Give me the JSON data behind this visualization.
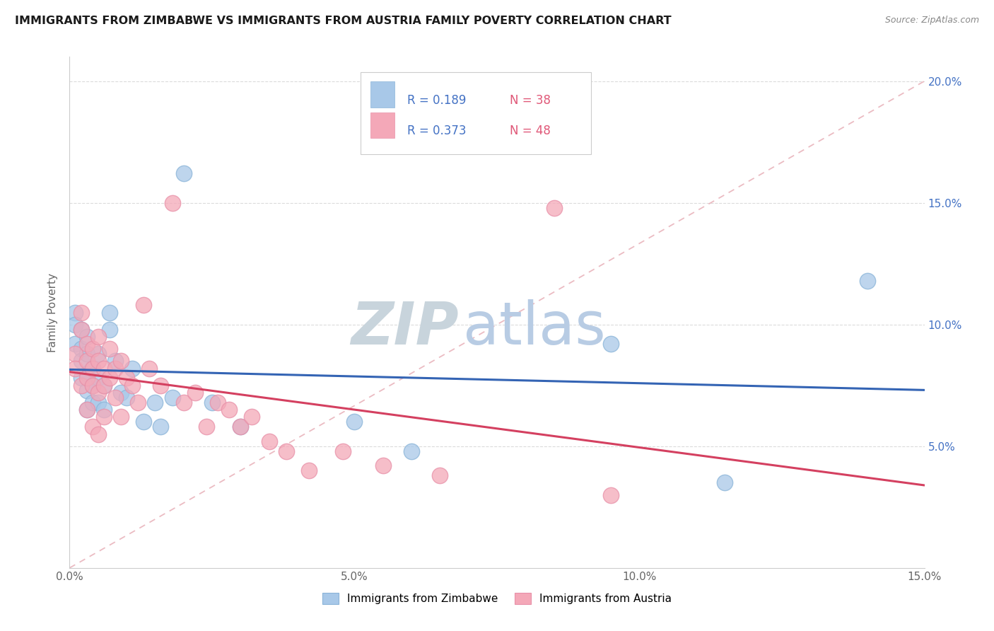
{
  "title": "IMMIGRANTS FROM ZIMBABWE VS IMMIGRANTS FROM AUSTRIA FAMILY POVERTY CORRELATION CHART",
  "source": "Source: ZipAtlas.com",
  "ylabel": "Family Poverty",
  "xlim": [
    0.0,
    0.15
  ],
  "ylim": [
    0.0,
    0.21
  ],
  "xtick_values": [
    0.0,
    0.025,
    0.05,
    0.075,
    0.1,
    0.125,
    0.15
  ],
  "xtick_labels": [
    "0.0%",
    "",
    "5.0%",
    "",
    "10.0%",
    "",
    "15.0%"
  ],
  "ytick_values": [
    0.05,
    0.1,
    0.15,
    0.2
  ],
  "ytick_labels": [
    "5.0%",
    "10.0%",
    "15.0%",
    "20.0%"
  ],
  "zimbabwe_color": "#a8c8e8",
  "austria_color": "#f4a8b8",
  "zimbabwe_edge_color": "#8ab4d8",
  "austria_edge_color": "#e890a8",
  "zimbabwe_line_color": "#3464b4",
  "austria_line_color": "#d44060",
  "diagonal_color": "#e8b0b8",
  "R_zimbabwe": 0.189,
  "N_zimbabwe": 38,
  "R_austria": 0.373,
  "N_austria": 48,
  "legend_R_color": "#4472c4",
  "legend_N_color": "#e05878",
  "background_color": "#ffffff",
  "grid_color": "#d8d8d8",
  "watermark_text": "ZIPatlas",
  "watermark_color": "#dce8f0",
  "zimbabwe_x": [
    0.001,
    0.001,
    0.001,
    0.002,
    0.002,
    0.002,
    0.002,
    0.003,
    0.003,
    0.003,
    0.003,
    0.003,
    0.004,
    0.004,
    0.004,
    0.005,
    0.005,
    0.005,
    0.006,
    0.006,
    0.007,
    0.007,
    0.008,
    0.009,
    0.01,
    0.011,
    0.013,
    0.015,
    0.016,
    0.018,
    0.02,
    0.025,
    0.03,
    0.05,
    0.06,
    0.095,
    0.115,
    0.14
  ],
  "zimbabwe_y": [
    0.105,
    0.1,
    0.092,
    0.098,
    0.09,
    0.085,
    0.078,
    0.095,
    0.088,
    0.08,
    0.073,
    0.065,
    0.082,
    0.075,
    0.068,
    0.088,
    0.078,
    0.068,
    0.075,
    0.065,
    0.105,
    0.098,
    0.085,
    0.072,
    0.07,
    0.082,
    0.06,
    0.068,
    0.058,
    0.07,
    0.162,
    0.068,
    0.058,
    0.06,
    0.048,
    0.092,
    0.035,
    0.118
  ],
  "austria_x": [
    0.001,
    0.001,
    0.002,
    0.002,
    0.002,
    0.003,
    0.003,
    0.003,
    0.003,
    0.004,
    0.004,
    0.004,
    0.004,
    0.005,
    0.005,
    0.005,
    0.005,
    0.006,
    0.006,
    0.006,
    0.007,
    0.007,
    0.008,
    0.008,
    0.009,
    0.009,
    0.01,
    0.011,
    0.012,
    0.013,
    0.014,
    0.016,
    0.018,
    0.02,
    0.022,
    0.024,
    0.026,
    0.028,
    0.03,
    0.032,
    0.035,
    0.038,
    0.042,
    0.048,
    0.055,
    0.065,
    0.085,
    0.095
  ],
  "austria_y": [
    0.088,
    0.082,
    0.105,
    0.098,
    0.075,
    0.092,
    0.085,
    0.078,
    0.065,
    0.09,
    0.082,
    0.075,
    0.058,
    0.095,
    0.085,
    0.072,
    0.055,
    0.082,
    0.075,
    0.062,
    0.09,
    0.078,
    0.082,
    0.07,
    0.085,
    0.062,
    0.078,
    0.075,
    0.068,
    0.108,
    0.082,
    0.075,
    0.15,
    0.068,
    0.072,
    0.058,
    0.068,
    0.065,
    0.058,
    0.062,
    0.052,
    0.048,
    0.04,
    0.048,
    0.042,
    0.038,
    0.148,
    0.03
  ]
}
